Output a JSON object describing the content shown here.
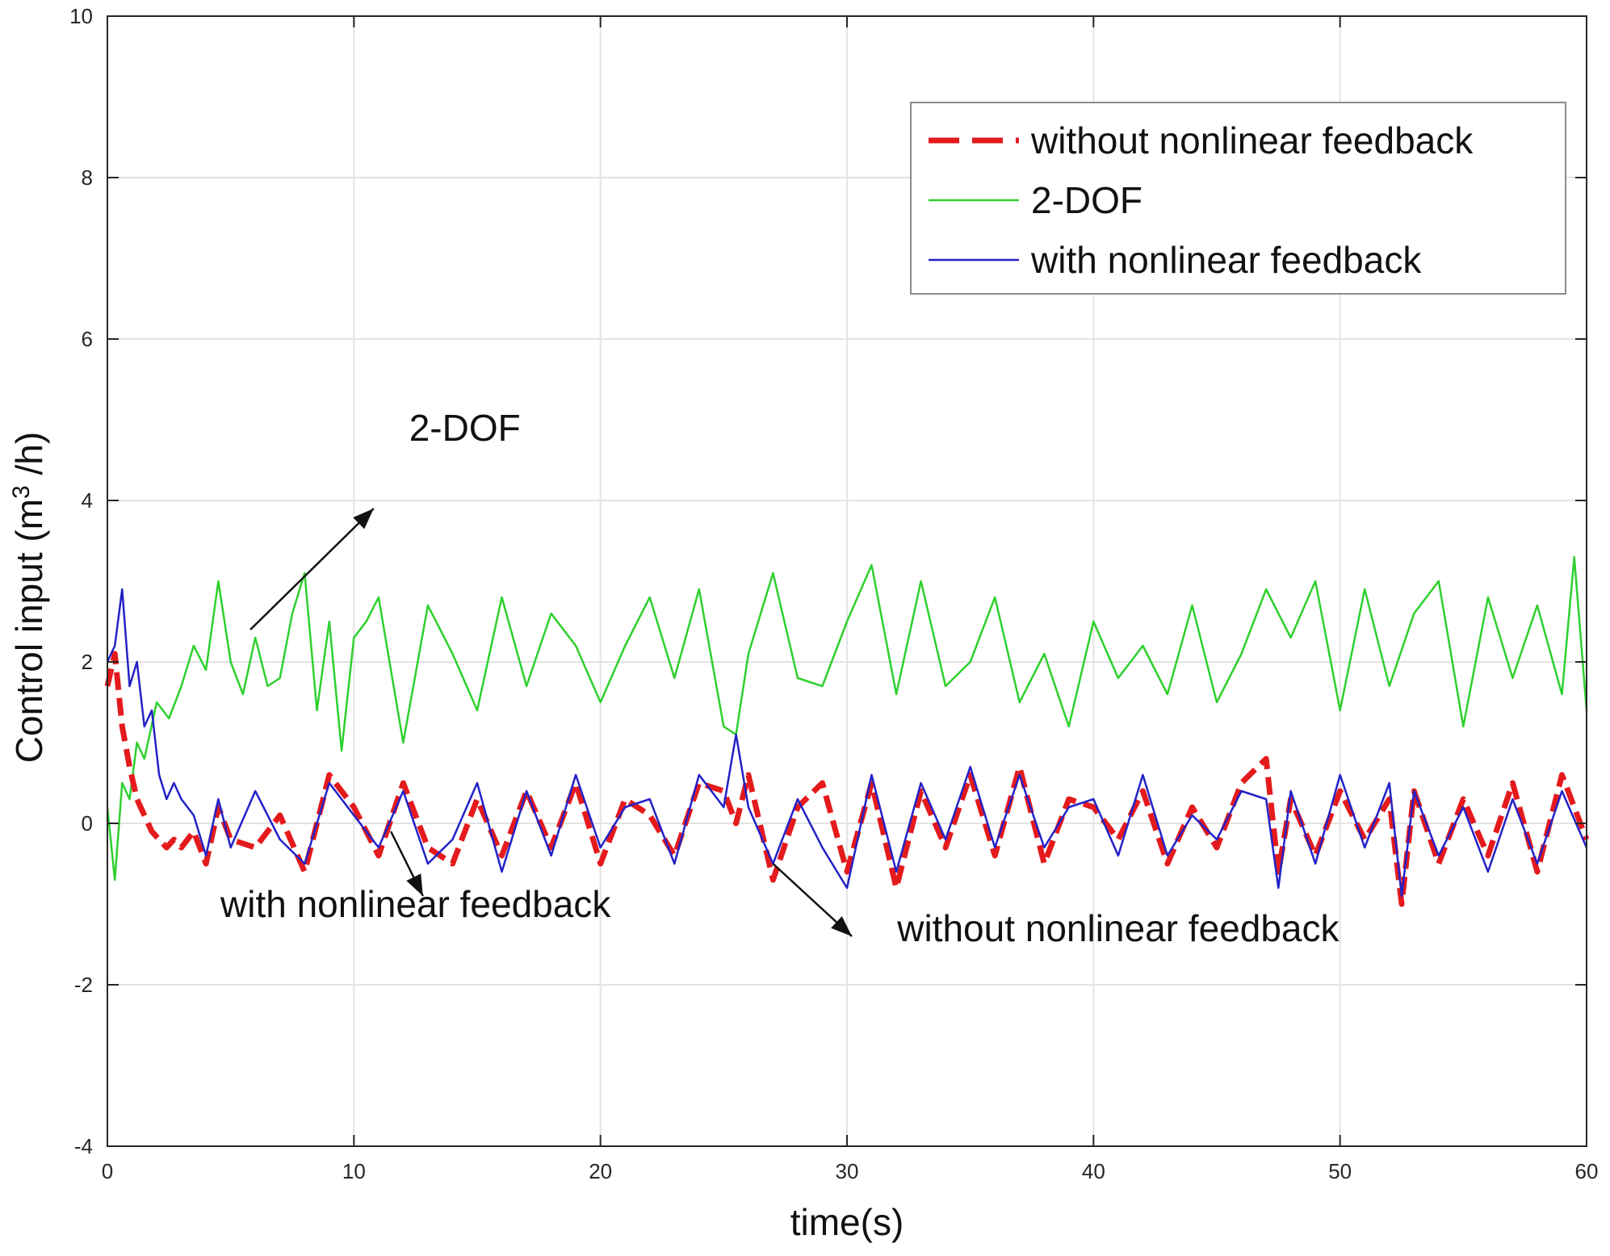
{
  "chart_data": {
    "type": "line",
    "title": "",
    "xlabel": "time(s)",
    "ylabel_main": "Control input (m",
    "ylabel_sup": "3",
    "ylabel_tail": " /h)",
    "xlim": [
      0,
      60
    ],
    "ylim": [
      -4,
      10
    ],
    "xticks": [
      0,
      10,
      20,
      30,
      40,
      50,
      60
    ],
    "yticks": [
      -4,
      -2,
      0,
      2,
      4,
      6,
      8,
      10
    ],
    "grid": true,
    "legend_position": "top-right",
    "series": [
      {
        "name": "without nonlinear feedback",
        "color": "#e41a1c",
        "style": "dashed",
        "x": [
          0,
          0.3,
          0.6,
          0.9,
          1.2,
          1.5,
          1.8,
          2.1,
          2.4,
          2.7,
          3.0,
          3.5,
          4.0,
          4.5,
          5.0,
          6.0,
          7.0,
          8.0,
          9.0,
          10.0,
          11.0,
          12.0,
          13.0,
          14.0,
          15.0,
          16.0,
          17.0,
          18.0,
          19.0,
          20.0,
          21.0,
          22.0,
          23.0,
          24.0,
          25.0,
          25.5,
          26.0,
          27.0,
          28.0,
          29.0,
          30.0,
          31.0,
          32.0,
          33.0,
          34.0,
          35.0,
          36.0,
          37.0,
          38.0,
          39.0,
          40.0,
          41.0,
          42.0,
          43.0,
          44.0,
          45.0,
          46.0,
          47.0,
          47.5,
          48.0,
          49.0,
          50.0,
          51.0,
          52.0,
          52.5,
          53.0,
          54.0,
          55.0,
          56.0,
          57.0,
          58.0,
          59.0,
          60.0
        ],
        "y": [
          1.7,
          2.1,
          1.2,
          0.7,
          0.3,
          0.1,
          -0.1,
          -0.2,
          -0.3,
          -0.2,
          -0.3,
          -0.1,
          -0.5,
          0.2,
          -0.2,
          -0.3,
          0.1,
          -0.6,
          0.6,
          0.2,
          -0.4,
          0.5,
          -0.3,
          -0.5,
          0.3,
          -0.4,
          0.4,
          -0.3,
          0.5,
          -0.5,
          0.3,
          0.1,
          -0.4,
          0.5,
          0.4,
          0.0,
          0.6,
          -0.7,
          0.2,
          0.5,
          -0.6,
          0.5,
          -0.8,
          0.4,
          -0.3,
          0.6,
          -0.4,
          0.7,
          -0.5,
          0.3,
          0.2,
          -0.2,
          0.4,
          -0.5,
          0.2,
          -0.3,
          0.5,
          0.8,
          -0.6,
          0.3,
          -0.4,
          0.4,
          -0.2,
          0.3,
          -1.0,
          0.4,
          -0.5,
          0.3,
          -0.4,
          0.5,
          -0.6,
          0.6,
          -0.2
        ]
      },
      {
        "name": "2-DOF",
        "color": "#2ed02e",
        "style": "solid",
        "x": [
          0,
          0.3,
          0.6,
          0.9,
          1.2,
          1.5,
          2.0,
          2.5,
          3.0,
          3.5,
          4.0,
          4.5,
          5.0,
          5.5,
          6.0,
          6.5,
          7.0,
          7.5,
          8.0,
          8.5,
          9.0,
          9.5,
          10.0,
          10.5,
          11.0,
          11.5,
          12.0,
          13.0,
          14.0,
          15.0,
          16.0,
          17.0,
          18.0,
          19.0,
          20.0,
          21.0,
          22.0,
          23.0,
          24.0,
          25.0,
          25.5,
          26.0,
          27.0,
          28.0,
          29.0,
          30.0,
          31.0,
          32.0,
          33.0,
          34.0,
          35.0,
          36.0,
          37.0,
          38.0,
          39.0,
          40.0,
          41.0,
          42.0,
          43.0,
          44.0,
          45.0,
          46.0,
          47.0,
          48.0,
          49.0,
          50.0,
          51.0,
          52.0,
          53.0,
          54.0,
          55.0,
          56.0,
          57.0,
          58.0,
          59.0,
          59.5,
          60.0
        ],
        "y": [
          0.2,
          -0.7,
          0.5,
          0.3,
          1.0,
          0.8,
          1.5,
          1.3,
          1.7,
          2.2,
          1.9,
          3.0,
          2.0,
          1.6,
          2.3,
          1.7,
          1.8,
          2.6,
          3.1,
          1.4,
          2.5,
          0.9,
          2.3,
          2.5,
          2.8,
          1.9,
          1.0,
          2.7,
          2.1,
          1.4,
          2.8,
          1.7,
          2.6,
          2.2,
          1.5,
          2.2,
          2.8,
          1.8,
          2.9,
          1.2,
          1.1,
          2.1,
          3.1,
          1.8,
          1.7,
          2.5,
          3.2,
          1.6,
          3.0,
          1.7,
          2.0,
          2.8,
          1.5,
          2.1,
          1.2,
          2.5,
          1.8,
          2.2,
          1.6,
          2.7,
          1.5,
          2.1,
          2.9,
          2.3,
          3.0,
          1.4,
          2.9,
          1.7,
          2.6,
          3.0,
          1.2,
          2.8,
          1.8,
          2.7,
          1.6,
          3.3,
          1.4
        ]
      },
      {
        "name": "with nonlinear feedback",
        "color": "#2222c8",
        "style": "solid",
        "x": [
          0,
          0.3,
          0.6,
          0.9,
          1.2,
          1.5,
          1.8,
          2.1,
          2.4,
          2.7,
          3.0,
          3.5,
          4.0,
          4.5,
          5.0,
          6.0,
          7.0,
          8.0,
          9.0,
          10.0,
          11.0,
          12.0,
          13.0,
          14.0,
          15.0,
          16.0,
          17.0,
          18.0,
          19.0,
          20.0,
          21.0,
          22.0,
          23.0,
          24.0,
          25.0,
          25.5,
          26.0,
          27.0,
          28.0,
          29.0,
          30.0,
          31.0,
          32.0,
          33.0,
          34.0,
          35.0,
          36.0,
          37.0,
          38.0,
          39.0,
          40.0,
          41.0,
          42.0,
          43.0,
          44.0,
          45.0,
          46.0,
          47.0,
          47.5,
          48.0,
          49.0,
          50.0,
          51.0,
          52.0,
          52.5,
          53.0,
          54.0,
          55.0,
          56.0,
          57.0,
          58.0,
          59.0,
          60.0
        ],
        "y": [
          2.0,
          2.2,
          2.9,
          1.7,
          2.0,
          1.2,
          1.4,
          0.6,
          0.3,
          0.5,
          0.3,
          0.1,
          -0.4,
          0.3,
          -0.3,
          0.4,
          -0.2,
          -0.5,
          0.5,
          0.1,
          -0.3,
          0.4,
          -0.5,
          -0.2,
          0.5,
          -0.6,
          0.4,
          -0.4,
          0.6,
          -0.3,
          0.2,
          0.3,
          -0.5,
          0.6,
          0.2,
          1.1,
          0.2,
          -0.5,
          0.3,
          -0.3,
          -0.8,
          0.6,
          -0.6,
          0.5,
          -0.2,
          0.7,
          -0.3,
          0.6,
          -0.3,
          0.2,
          0.3,
          -0.4,
          0.6,
          -0.4,
          0.1,
          -0.2,
          0.4,
          0.3,
          -0.8,
          0.4,
          -0.5,
          0.6,
          -0.3,
          0.5,
          -0.9,
          0.4,
          -0.4,
          0.2,
          -0.6,
          0.3,
          -0.5,
          0.4,
          -0.3
        ]
      }
    ],
    "annotations": [
      {
        "text": "2-DOF",
        "x": 14.5,
        "y": 4.9,
        "arrow_from": [
          5.8,
          2.4
        ],
        "arrow_to": [
          10.8,
          3.9
        ]
      },
      {
        "text": "with nonlinear feedback",
        "x": 12.5,
        "y": -1.0,
        "arrow_from": [
          11.5,
          -0.1
        ],
        "arrow_to": [
          12.8,
          -0.9
        ]
      },
      {
        "text": "without nonlinear feedback",
        "x": 41.0,
        "y": -1.3,
        "arrow_from": [
          27.0,
          -0.5
        ],
        "arrow_to": [
          30.2,
          -1.4
        ]
      }
    ]
  }
}
